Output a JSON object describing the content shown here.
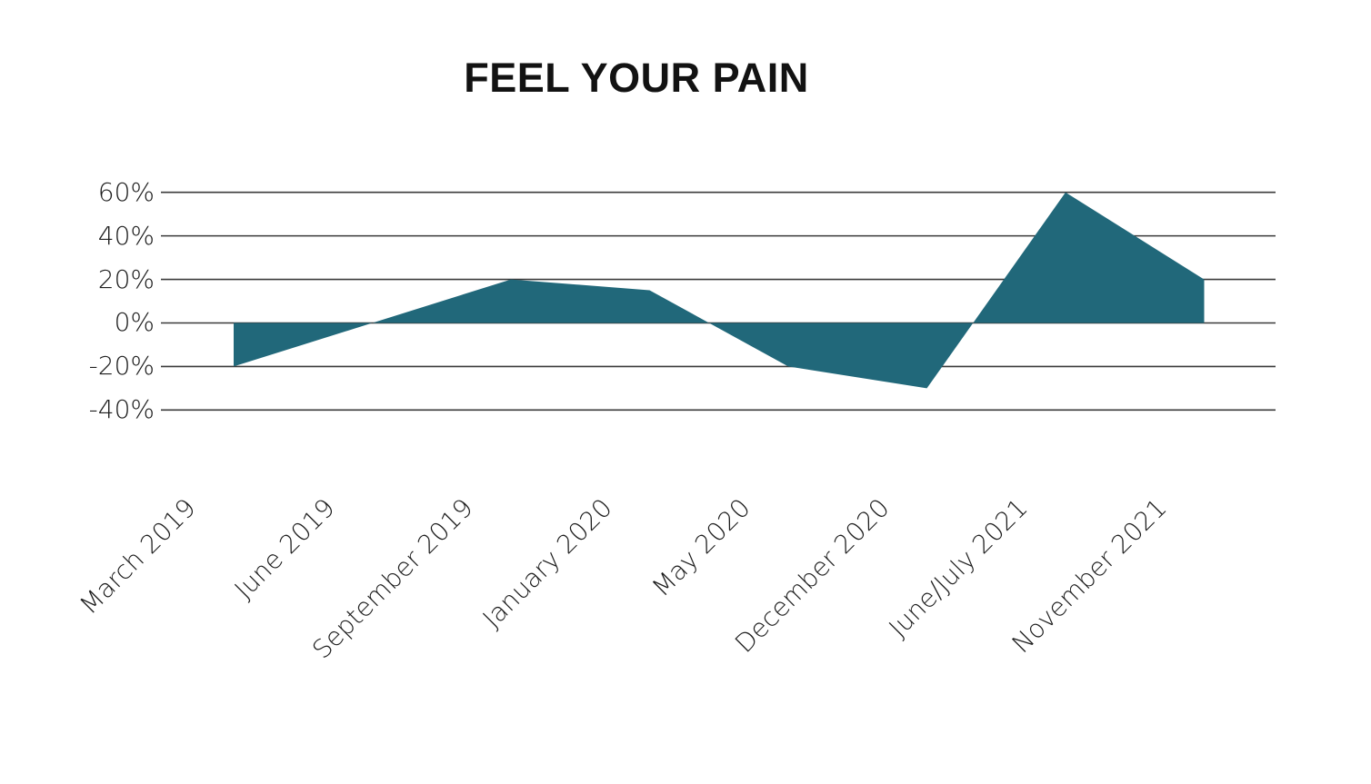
{
  "title": "FEEL YOUR PAIN",
  "chart_data": {
    "type": "area",
    "title": "FEEL YOUR PAIN",
    "categories": [
      "March 2019",
      "June 2019",
      "September 2019",
      "January 2020",
      "May 2020",
      "December 2020",
      "June/July 2021",
      "November 2021"
    ],
    "values": [
      -20,
      0,
      20,
      15,
      -20,
      -30,
      60,
      20
    ],
    "unit": "%",
    "xlabel": "",
    "ylabel": "",
    "ylim": [
      -40,
      60
    ],
    "yticks": [
      60,
      40,
      20,
      0,
      -20,
      -40
    ],
    "ytick_labels": [
      "60%",
      "40%",
      "20%",
      "0%",
      "-20%",
      "-40%"
    ],
    "baseline": 0,
    "grid": "horizontal-only",
    "legend": "none",
    "area_color": "#21687a",
    "gridline_color": "#3a3a3a",
    "label_color": "#1d1d1d",
    "title_color": "#121212"
  }
}
